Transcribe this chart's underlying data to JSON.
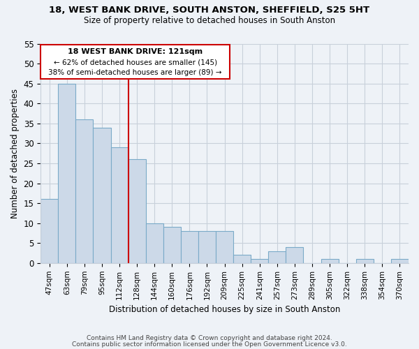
{
  "title_line1": "18, WEST BANK DRIVE, SOUTH ANSTON, SHEFFIELD, S25 5HT",
  "title_line2": "Size of property relative to detached houses in South Anston",
  "xlabel": "Distribution of detached houses by size in South Anston",
  "ylabel": "Number of detached properties",
  "bar_labels": [
    "47sqm",
    "63sqm",
    "79sqm",
    "95sqm",
    "112sqm",
    "128sqm",
    "144sqm",
    "160sqm",
    "176sqm",
    "192sqm",
    "209sqm",
    "225sqm",
    "241sqm",
    "257sqm",
    "273sqm",
    "289sqm",
    "305sqm",
    "322sqm",
    "338sqm",
    "354sqm",
    "370sqm"
  ],
  "bar_values": [
    16,
    45,
    36,
    34,
    29,
    26,
    10,
    9,
    8,
    8,
    8,
    2,
    1,
    3,
    4,
    0,
    1,
    0,
    1,
    0,
    1
  ],
  "bar_color": "#ccd9e8",
  "bar_edge_color": "#7aaac8",
  "grid_color": "#c8d0da",
  "annotation_line1": "18 WEST BANK DRIVE: 121sqm",
  "annotation_line2": "← 62% of detached houses are smaller (145)",
  "annotation_line3": "38% of semi-detached houses are larger (89) →",
  "vline_color": "#cc0000",
  "annotation_box_color": "#cc0000",
  "ylim": [
    0,
    55
  ],
  "yticks": [
    0,
    5,
    10,
    15,
    20,
    25,
    30,
    35,
    40,
    45,
    50,
    55
  ],
  "footer_line1": "Contains HM Land Registry data © Crown copyright and database right 2024.",
  "footer_line2": "Contains public sector information licensed under the Open Government Licence v3.0.",
  "background_color": "#eef2f7"
}
